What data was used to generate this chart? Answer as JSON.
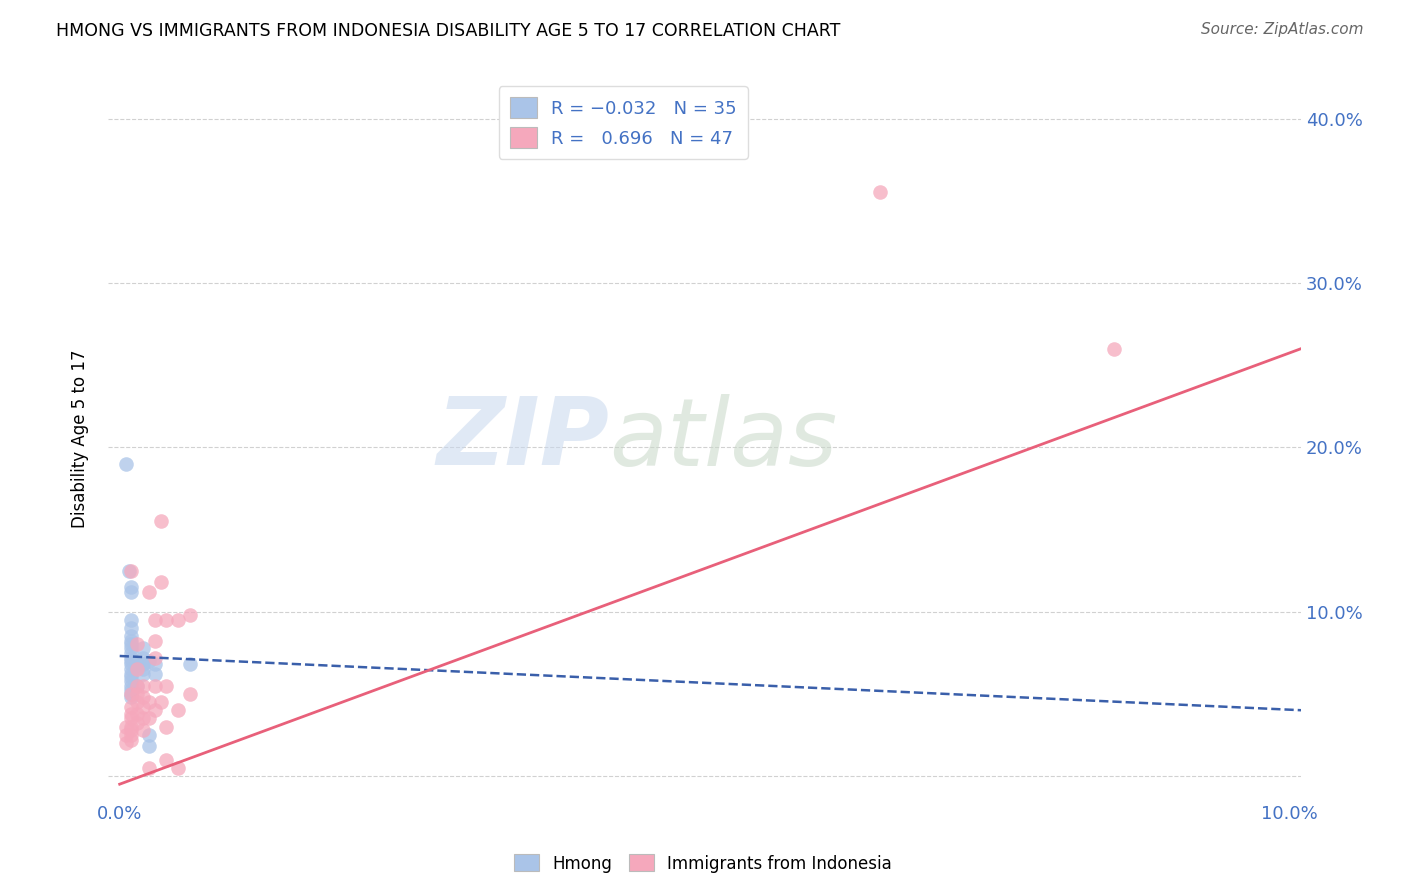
{
  "title": "HMONG VS IMMIGRANTS FROM INDONESIA DISABILITY AGE 5 TO 17 CORRELATION CHART",
  "source": "Source: ZipAtlas.com",
  "ylabel": "Disability Age 5 to 17",
  "xlim": [
    -0.001,
    0.101
  ],
  "ylim": [
    -0.015,
    0.425
  ],
  "yticks": [
    0.0,
    0.1,
    0.2,
    0.3,
    0.4
  ],
  "xticks": [
    0.0,
    0.1
  ],
  "xtick_labels": [
    "0.0%",
    "10.0%"
  ],
  "ytick_labels_right": [
    "",
    "10.0%",
    "20.0%",
    "30.0%",
    "40.0%"
  ],
  "hmong_color": "#aac4e8",
  "indonesia_color": "#f5a8bc",
  "hmong_line_color": "#3a5faa",
  "indonesia_line_color": "#e8607a",
  "watermark_zip": "ZIP",
  "watermark_atlas": "atlas",
  "hmong_R": -0.032,
  "hmong_N": 35,
  "indonesia_R": 0.696,
  "indonesia_N": 47,
  "hmong_line_x": [
    0.0,
    0.101
  ],
  "hmong_line_y": [
    0.073,
    0.04
  ],
  "indonesia_line_x": [
    0.0,
    0.101
  ],
  "indonesia_line_y": [
    -0.005,
    0.26
  ],
  "hmong_points": [
    [
      0.0005,
      0.19
    ],
    [
      0.0008,
      0.125
    ],
    [
      0.001,
      0.115
    ],
    [
      0.001,
      0.112
    ],
    [
      0.001,
      0.095
    ],
    [
      0.001,
      0.09
    ],
    [
      0.001,
      0.085
    ],
    [
      0.001,
      0.082
    ],
    [
      0.001,
      0.08
    ],
    [
      0.001,
      0.078
    ],
    [
      0.001,
      0.075
    ],
    [
      0.001,
      0.072
    ],
    [
      0.001,
      0.07
    ],
    [
      0.001,
      0.068
    ],
    [
      0.001,
      0.065
    ],
    [
      0.001,
      0.062
    ],
    [
      0.001,
      0.06
    ],
    [
      0.001,
      0.058
    ],
    [
      0.001,
      0.055
    ],
    [
      0.001,
      0.052
    ],
    [
      0.001,
      0.05
    ],
    [
      0.001,
      0.048
    ],
    [
      0.0015,
      0.068
    ],
    [
      0.0015,
      0.055
    ],
    [
      0.002,
      0.078
    ],
    [
      0.002,
      0.072
    ],
    [
      0.002,
      0.068
    ],
    [
      0.002,
      0.065
    ],
    [
      0.002,
      0.062
    ],
    [
      0.0025,
      0.07
    ],
    [
      0.0025,
      0.025
    ],
    [
      0.0025,
      0.018
    ],
    [
      0.003,
      0.068
    ],
    [
      0.003,
      0.062
    ],
    [
      0.006,
      0.068
    ]
  ],
  "indonesia_points": [
    [
      0.0005,
      0.03
    ],
    [
      0.0005,
      0.025
    ],
    [
      0.0005,
      0.02
    ],
    [
      0.001,
      0.125
    ],
    [
      0.001,
      0.05
    ],
    [
      0.001,
      0.042
    ],
    [
      0.001,
      0.038
    ],
    [
      0.001,
      0.035
    ],
    [
      0.001,
      0.03
    ],
    [
      0.001,
      0.028
    ],
    [
      0.001,
      0.025
    ],
    [
      0.001,
      0.022
    ],
    [
      0.0015,
      0.08
    ],
    [
      0.0015,
      0.065
    ],
    [
      0.0015,
      0.055
    ],
    [
      0.0015,
      0.05
    ],
    [
      0.0015,
      0.045
    ],
    [
      0.0015,
      0.038
    ],
    [
      0.0015,
      0.032
    ],
    [
      0.002,
      0.055
    ],
    [
      0.002,
      0.048
    ],
    [
      0.002,
      0.042
    ],
    [
      0.002,
      0.035
    ],
    [
      0.002,
      0.028
    ],
    [
      0.0025,
      0.112
    ],
    [
      0.0025,
      0.045
    ],
    [
      0.0025,
      0.035
    ],
    [
      0.0025,
      0.005
    ],
    [
      0.003,
      0.095
    ],
    [
      0.003,
      0.082
    ],
    [
      0.003,
      0.072
    ],
    [
      0.003,
      0.055
    ],
    [
      0.003,
      0.04
    ],
    [
      0.0035,
      0.155
    ],
    [
      0.0035,
      0.118
    ],
    [
      0.0035,
      0.045
    ],
    [
      0.004,
      0.095
    ],
    [
      0.004,
      0.055
    ],
    [
      0.004,
      0.03
    ],
    [
      0.004,
      0.01
    ],
    [
      0.005,
      0.095
    ],
    [
      0.005,
      0.04
    ],
    [
      0.005,
      0.005
    ],
    [
      0.006,
      0.098
    ],
    [
      0.006,
      0.05
    ],
    [
      0.065,
      0.355
    ],
    [
      0.085,
      0.26
    ]
  ]
}
